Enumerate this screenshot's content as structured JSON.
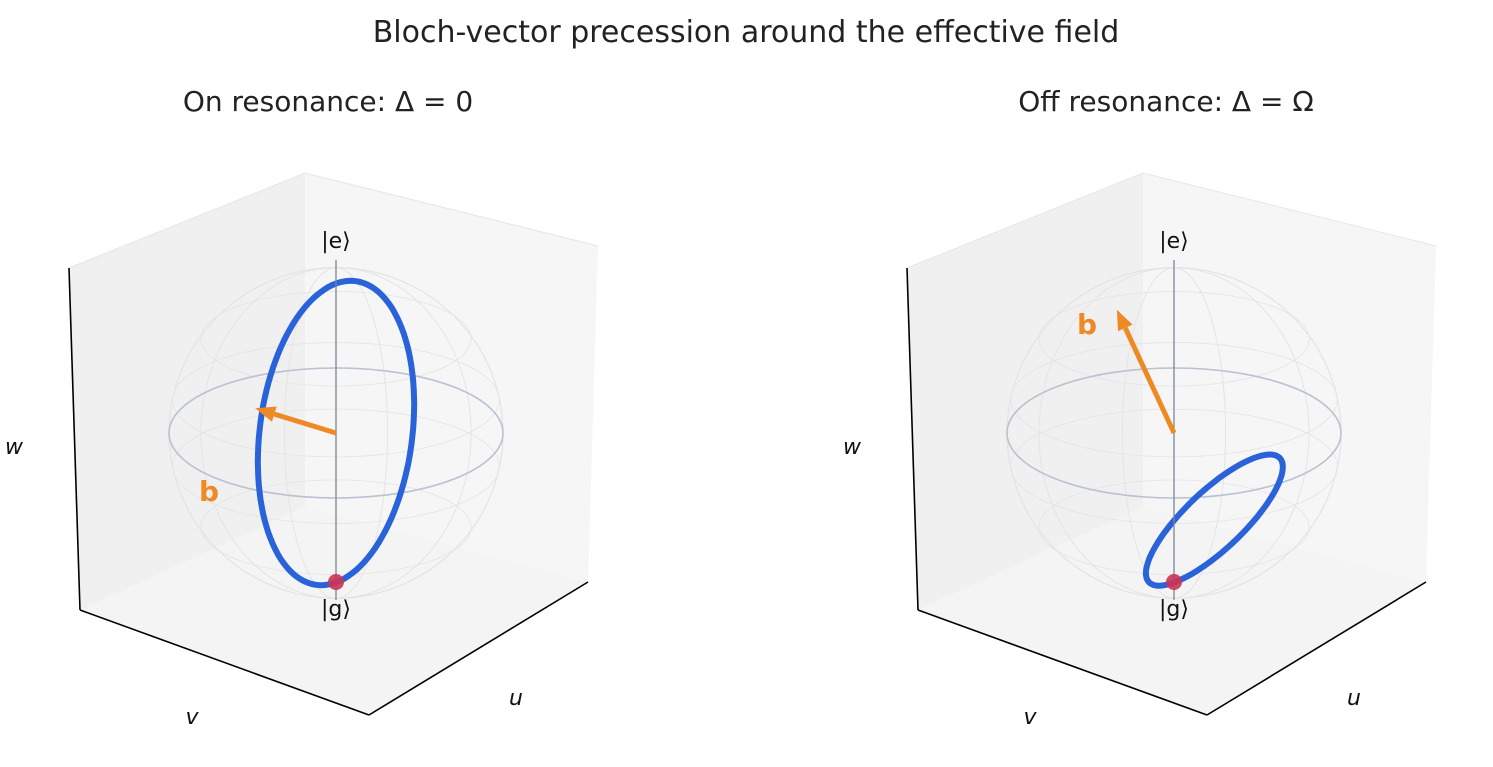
{
  "figure": {
    "title": "Bloch-vector precession around the effective field"
  },
  "panels": [
    {
      "title": "On resonance: Δ = 0",
      "axes": {
        "u": "u",
        "v": "v",
        "w": "w"
      },
      "poles": {
        "north": "|e⟩",
        "south": "|g⟩"
      },
      "vector_label": "b",
      "field_vector": [
        1,
        0,
        0
      ],
      "start_state": [
        0,
        0,
        -1
      ],
      "colors": {
        "trajectory": "#2962d9",
        "vector": "#ee8a26",
        "start": "#cc3355"
      }
    },
    {
      "title": "Off resonance: Δ = Ω",
      "axes": {
        "u": "u",
        "v": "v",
        "w": "w"
      },
      "poles": {
        "north": "|e⟩",
        "south": "|g⟩"
      },
      "vector_label": "b",
      "field_vector": [
        0.707,
        0,
        0.707
      ],
      "start_state": [
        0,
        0,
        -1
      ],
      "colors": {
        "trajectory": "#2962d9",
        "vector": "#ee8a26",
        "start": "#cc3355"
      }
    }
  ]
}
